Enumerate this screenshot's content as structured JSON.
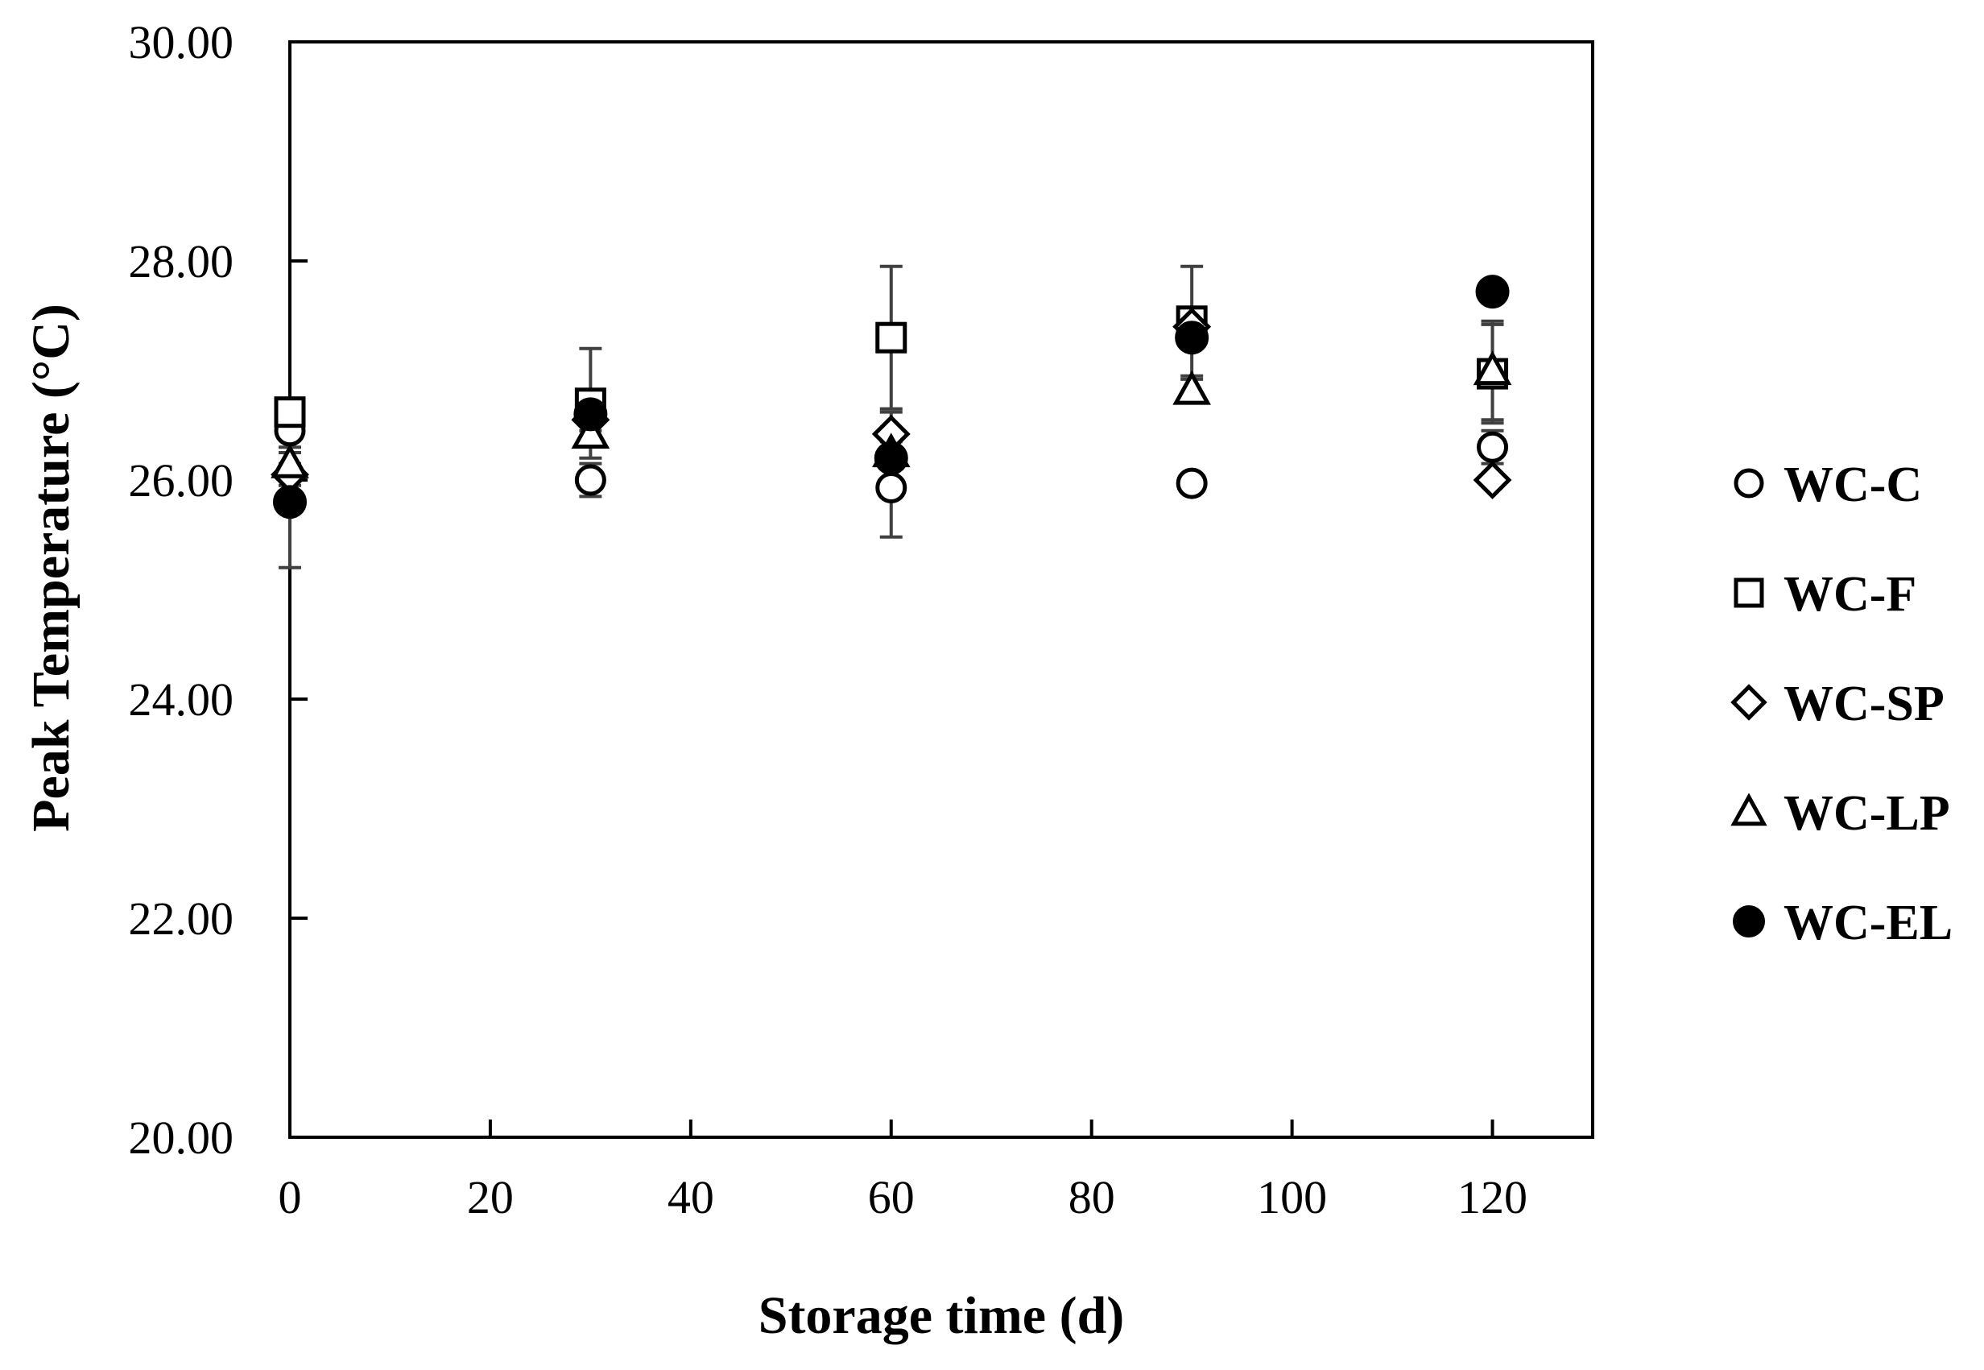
{
  "chart_data": {
    "type": "scatter",
    "title": "",
    "xlabel": "Storage time (d)",
    "ylabel": "Peak Temperature (°C)",
    "xlim": [
      0,
      130
    ],
    "ylim": [
      20,
      30
    ],
    "x_ticks": [
      0,
      20,
      40,
      60,
      80,
      100,
      120
    ],
    "x_tick_labels": [
      "0",
      "20",
      "40",
      "60",
      "80",
      "100",
      "120"
    ],
    "y_ticks": [
      20,
      22,
      24,
      26,
      28,
      30
    ],
    "y_tick_labels": [
      "20.00",
      "22.00",
      "24.00",
      "26.00",
      "28.00",
      "30.00"
    ],
    "grid": false,
    "legend_position": "right",
    "x": [
      0,
      30,
      60,
      90,
      120
    ],
    "series": [
      {
        "name": "WC-C",
        "marker": "circle-open",
        "values": [
          26.45,
          26.0,
          25.93,
          25.97,
          26.3
        ],
        "errors": [
          0.15,
          0.15,
          0.45,
          0.05,
          0.15
        ]
      },
      {
        "name": "WC-F",
        "marker": "square-open",
        "values": [
          26.62,
          26.7,
          27.3,
          27.45,
          26.97
        ],
        "errors": [
          0.1,
          0.5,
          0.65,
          0.5,
          0.45
        ]
      },
      {
        "name": "WC-SP",
        "marker": "diamond-open",
        "values": [
          26.05,
          26.55,
          26.42,
          27.4,
          26.0
        ],
        "errors": [
          0.1,
          0.1,
          0.2,
          0.1,
          0.05
        ]
      },
      {
        "name": "WC-LP",
        "marker": "triangle-open",
        "values": [
          26.15,
          26.42,
          26.25,
          26.82,
          27.0
        ],
        "errors": [
          0.1,
          0.1,
          0.1,
          0.1,
          0.45
        ]
      },
      {
        "name": "WC-EL",
        "marker": "circle-filled",
        "values": [
          25.8,
          26.6,
          26.2,
          27.3,
          27.72
        ],
        "errors": [
          0.6,
          0.05,
          0.05,
          0.05,
          0.05
        ]
      }
    ]
  }
}
